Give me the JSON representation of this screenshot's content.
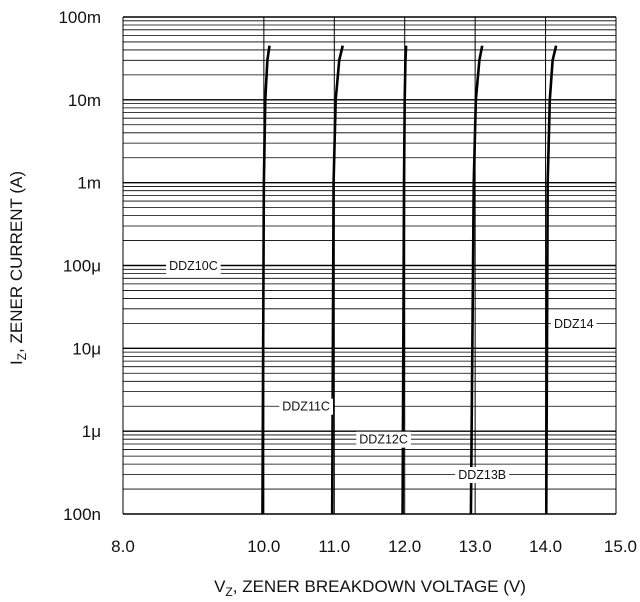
{
  "chart_data": {
    "type": "line",
    "title": "",
    "xlabel": "V",
    "xlabel_sub": "Z",
    "xlabel_rest": ", ZENER BREAKDOWN VOLTAGE (V)",
    "ylabel": "I",
    "ylabel_sub": "Z",
    "ylabel_rest": ", ZENER CURRENT (A)",
    "xlim": [
      8.0,
      15.0
    ],
    "ylim": [
      1e-07,
      0.1
    ],
    "yscale": "log",
    "grid": true,
    "x_ticks": [
      {
        "value": 8.0,
        "label": "8.0"
      },
      {
        "value": 10.0,
        "label": "10.0"
      },
      {
        "value": 11.0,
        "label": "11.0"
      },
      {
        "value": 12.0,
        "label": "12.0"
      },
      {
        "value": 13.0,
        "label": "13.0"
      },
      {
        "value": 14.0,
        "label": "14.0"
      },
      {
        "value": 15.0,
        "label": "15.0"
      }
    ],
    "y_ticks": [
      {
        "value": 0.1,
        "label": "100m"
      },
      {
        "value": 0.01,
        "label": "10m"
      },
      {
        "value": 0.001,
        "label": "1m"
      },
      {
        "value": 0.0001,
        "label": "100μ"
      },
      {
        "value": 1e-05,
        "label": "10μ"
      },
      {
        "value": 1e-06,
        "label": "1μ"
      },
      {
        "value": 1e-07,
        "label": "100n"
      }
    ],
    "series": [
      {
        "name": "DDZ10C",
        "label_at": {
          "x": 9.0,
          "y": 0.0001
        },
        "points": [
          [
            9.98,
            1e-07
          ],
          [
            9.99,
            1e-05
          ],
          [
            10.0,
            0.001
          ],
          [
            10.02,
            0.01
          ],
          [
            10.05,
            0.03
          ],
          [
            10.08,
            0.045
          ]
        ]
      },
      {
        "name": "DDZ11C",
        "label_at": {
          "x": 10.6,
          "y": 2e-06
        },
        "points": [
          [
            10.97,
            1e-07
          ],
          [
            10.98,
            1e-05
          ],
          [
            10.99,
            0.001
          ],
          [
            11.02,
            0.01
          ],
          [
            11.07,
            0.03
          ],
          [
            11.12,
            0.045
          ]
        ]
      },
      {
        "name": "DDZ12C",
        "label_at": {
          "x": 11.7,
          "y": 8e-07
        },
        "points": [
          [
            11.97,
            1e-07
          ],
          [
            11.98,
            1e-05
          ],
          [
            11.99,
            0.001
          ],
          [
            12.0,
            0.01
          ],
          [
            12.01,
            0.03
          ],
          [
            12.02,
            0.045
          ]
        ]
      },
      {
        "name": "DDZ13B",
        "label_at": {
          "x": 13.1,
          "y": 3e-07
        },
        "points": [
          [
            12.94,
            1e-07
          ],
          [
            12.96,
            1e-05
          ],
          [
            12.98,
            0.001
          ],
          [
            13.01,
            0.01
          ],
          [
            13.06,
            0.03
          ],
          [
            13.1,
            0.045
          ]
        ]
      },
      {
        "name": "DDZ14",
        "label_at": {
          "x": 14.4,
          "y": 2e-05
        },
        "points": [
          [
            14.01,
            1e-07
          ],
          [
            14.02,
            1e-05
          ],
          [
            14.03,
            0.001
          ],
          [
            14.06,
            0.01
          ],
          [
            14.1,
            0.03
          ],
          [
            14.15,
            0.045
          ]
        ]
      }
    ]
  }
}
